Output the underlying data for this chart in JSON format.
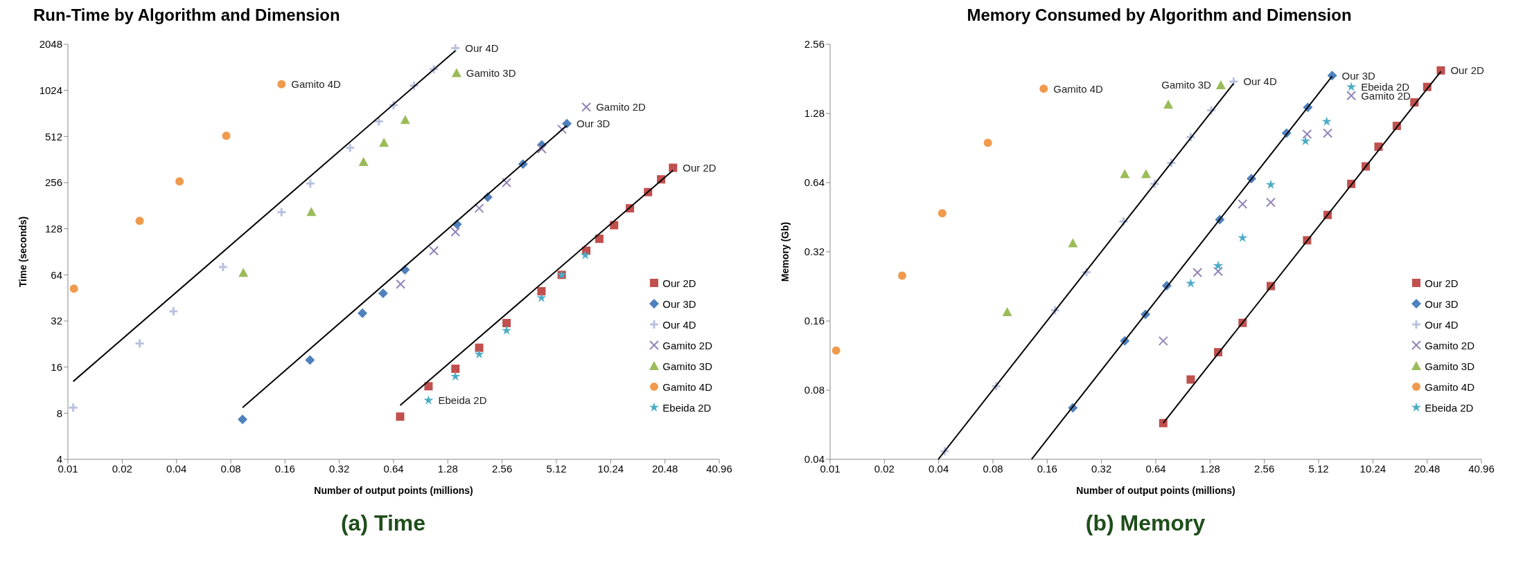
{
  "chart_data": [
    {
      "type": "scatter",
      "title": "Run-Time by Algorithm and Dimension",
      "subtitle": "(a) Time",
      "xlabel": "Number of output points (millions)",
      "ylabel": "Time (seconds)",
      "log": "xy",
      "legend": "bottom right",
      "grid": false,
      "xlim": [
        0.01,
        40.96
      ],
      "xticks": [
        0.01,
        0.02,
        0.04,
        0.08,
        0.16,
        0.32,
        0.64,
        1.28,
        2.56,
        5.12,
        10.24,
        20.48,
        40.96
      ],
      "ylim": [
        4,
        2048
      ],
      "yticks": [
        4,
        8,
        16,
        32,
        64,
        128,
        256,
        512,
        1024,
        2048
      ],
      "series": [
        {
          "name": "Our 2D",
          "color": "#c0504d",
          "marker": "square",
          "x": [
            0.696,
            1.0,
            1.41,
            1.91,
            2.71,
            4.23,
            5.48,
            7.5,
            8.86,
            10.7,
            13.1,
            16.5,
            19.5,
            22.7
          ],
          "values": [
            7.6,
            12,
            15.6,
            21.4,
            31,
            50,
            64,
            92,
            110,
            135,
            174,
            222,
            269,
            320
          ]
        },
        {
          "name": "Our 3D",
          "color": "#4f81bd",
          "marker": "diamond",
          "x": [
            0.093,
            0.22,
            0.43,
            0.56,
            0.74,
            1.44,
            2.13,
            3.34,
            4.25,
            5.85
          ],
          "values": [
            7.3,
            17.8,
            36,
            48.5,
            69,
            137,
            206,
            338,
            451,
            621
          ]
        },
        {
          "name": "Our 4D",
          "color": "#b9c1e0",
          "marker": "cross",
          "x": [
            0.0107,
            0.025,
            0.0385,
            0.0725,
            0.153,
            0.221,
            0.367,
            0.53,
            0.64,
            0.83,
            1.07,
            1.41
          ],
          "values": [
            8.7,
            22.8,
            37,
            72,
            164,
            253,
            433,
            643,
            820,
            1100,
            1410,
            1935
          ]
        },
        {
          "name": "Gamito 2D",
          "color": "#9383b8",
          "marker": "x",
          "x": [
            0.7,
            1.07,
            1.41,
            1.91,
            2.71,
            4.25,
            5.5,
            7.5
          ],
          "values": [
            55.7,
            92,
            122,
            174,
            256,
            425,
            571,
            797
          ]
        },
        {
          "name": "Gamito 3D",
          "color": "#9bbb59",
          "marker": "triangle",
          "x": [
            0.094,
            0.224,
            0.436,
            0.566,
            0.743,
            1.43
          ],
          "values": [
            66,
            165,
            350,
            467,
            658,
            1330
          ]
        },
        {
          "name": "Gamito 4D",
          "color": "#f09a4e",
          "marker": "circle",
          "x": [
            0.0108,
            0.025,
            0.0416,
            0.0756,
            0.153
          ],
          "values": [
            52,
            144,
            261,
            518,
            1124
          ]
        },
        {
          "name": "Ebeida 2D",
          "color": "#4bacc6",
          "marker": "star",
          "x": [
            1.0,
            1.41,
            1.91,
            2.71,
            4.23,
            5.48,
            7.4
          ],
          "values": [
            9.7,
            13.9,
            19.4,
            27.7,
            45.3,
            64,
            86
          ]
        },
        {
          "type": "line",
          "color": "#000000",
          "x": [
            0.0107,
            1.41
          ],
          "values": [
            12.9,
            1858
          ]
        },
        {
          "type": "line",
          "color": "#000000",
          "x": [
            0.093,
            5.85
          ],
          "values": [
            8.7,
            604
          ]
        },
        {
          "type": "line",
          "color": "#000000",
          "x": [
            0.696,
            22.7
          ],
          "values": [
            9.0,
            308
          ]
        }
      ],
      "annotations": [
        {
          "text": "Gamito 4D",
          "x": 0.153,
          "y": 1124
        },
        {
          "text": "Our 4D",
          "x": 1.41,
          "y": 1935
        },
        {
          "text": "Gamito 3D",
          "x": 1.43,
          "y": 1330
        },
        {
          "text": "Gamito 2D",
          "x": 7.5,
          "y": 797
        },
        {
          "text": "Our 3D",
          "x": 5.85,
          "y": 621
        },
        {
          "text": "Our 2D",
          "x": 22.7,
          "y": 320
        },
        {
          "text": "Ebeida 2D",
          "x": 1.0,
          "y": 9.7
        }
      ]
    },
    {
      "type": "scatter",
      "title": "Memory Consumed by Algorithm and Dimension",
      "subtitle": "(b) Memory",
      "xlabel": "Number of output points (millions)",
      "ylabel": "Memory (Gb)",
      "log": "xy",
      "legend": "bottom right",
      "grid": false,
      "xlim": [
        0.01,
        40.96
      ],
      "xticks": [
        0.01,
        0.02,
        0.04,
        0.08,
        0.16,
        0.32,
        0.64,
        1.28,
        2.56,
        5.12,
        10.24,
        20.48,
        40.96
      ],
      "ylim": [
        0.04,
        2.56
      ],
      "yticks": [
        0.04,
        0.08,
        0.16,
        0.32,
        0.64,
        1.28,
        2.56
      ],
      "series": [
        {
          "name": "Our 2D",
          "color": "#c0504d",
          "marker": "square",
          "x": [
            0.704,
            1.0,
            1.42,
            1.94,
            2.78,
            4.42,
            5.75,
            7.77,
            9.35,
            11.0,
            13.9,
            17.4,
            20.5,
            24.4
          ],
          "values": [
            0.0575,
            0.089,
            0.117,
            0.157,
            0.227,
            0.359,
            0.463,
            0.632,
            0.753,
            0.917,
            1.13,
            1.43,
            1.67,
            1.97
          ]
        },
        {
          "name": "Our 3D",
          "color": "#4f81bd",
          "marker": "diamond",
          "x": [
            0.222,
            0.431,
            0.561,
            0.737,
            1.45,
            2.17,
            3.4,
            4.46,
            6.09
          ],
          "values": [
            0.067,
            0.131,
            0.171,
            0.228,
            0.442,
            0.666,
            1.05,
            1.36,
            1.87
          ]
        },
        {
          "name": "Our 4D",
          "color": "#b9c1e0",
          "marker": "cross",
          "x": [
            0.0432,
            0.0834,
            0.177,
            0.264,
            0.424,
            0.631,
            0.78,
            1.0,
            1.3,
            1.73
          ],
          "values": [
            0.0434,
            0.0833,
            0.178,
            0.261,
            0.433,
            0.632,
            0.78,
            1.01,
            1.32,
            1.76
          ]
        },
        {
          "name": "Gamito 2D",
          "color": "#9383b8",
          "marker": "x",
          "x": [
            0.704,
            1.09,
            1.42,
            1.94,
            2.78,
            4.42,
            5.75,
            7.77
          ],
          "values": [
            0.131,
            0.26,
            0.263,
            0.516,
            0.525,
            1.04,
            1.05,
            1.53
          ]
        },
        {
          "name": "Gamito 3D",
          "color": "#9bbb59",
          "marker": "triangle",
          "x": [
            0.096,
            0.222,
            0.431,
            0.565,
            0.751,
            1.47
          ],
          "values": [
            0.175,
            0.349,
            0.698,
            0.698,
            1.4,
            1.7
          ]
        },
        {
          "name": "Gamito 4D",
          "color": "#f09a4e",
          "marker": "circle",
          "x": [
            0.0108,
            0.0251,
            0.0419,
            0.075,
            0.153
          ],
          "values": [
            0.119,
            0.252,
            0.471,
            0.953,
            1.64
          ]
        },
        {
          "name": "Ebeida 2D",
          "color": "#4bacc6",
          "marker": "star",
          "x": [
            1.0,
            1.42,
            1.94,
            2.78,
            4.33,
            5.68,
            7.77
          ],
          "values": [
            0.233,
            0.278,
            0.368,
            0.627,
            0.97,
            1.18,
            1.67
          ]
        },
        {
          "type": "line",
          "color": "#000000",
          "x": [
            0.0398,
            1.73
          ],
          "values": [
            0.04,
            1.73
          ]
        },
        {
          "type": "line",
          "color": "#000000",
          "x": [
            0.131,
            6.09
          ],
          "values": [
            0.04,
            1.86
          ]
        },
        {
          "type": "line",
          "color": "#000000",
          "x": [
            0.704,
            24.4
          ],
          "values": [
            0.0575,
            1.95
          ]
        }
      ],
      "annotations": [
        {
          "text": "Gamito 4D",
          "x": 0.153,
          "y": 1.64
        },
        {
          "text": "Gamito 3D",
          "x": 1.47,
          "y": 1.7
        },
        {
          "text": "Our 4D",
          "x": 1.73,
          "y": 1.76
        },
        {
          "text": "Our 3D",
          "x": 6.09,
          "y": 1.87
        },
        {
          "text": "Ebeida 2D",
          "x": 7.77,
          "y": 1.67
        },
        {
          "text": "Gamito 2D",
          "x": 7.77,
          "y": 1.53
        },
        {
          "text": "Our 2D",
          "x": 24.4,
          "y": 1.97
        }
      ]
    }
  ]
}
